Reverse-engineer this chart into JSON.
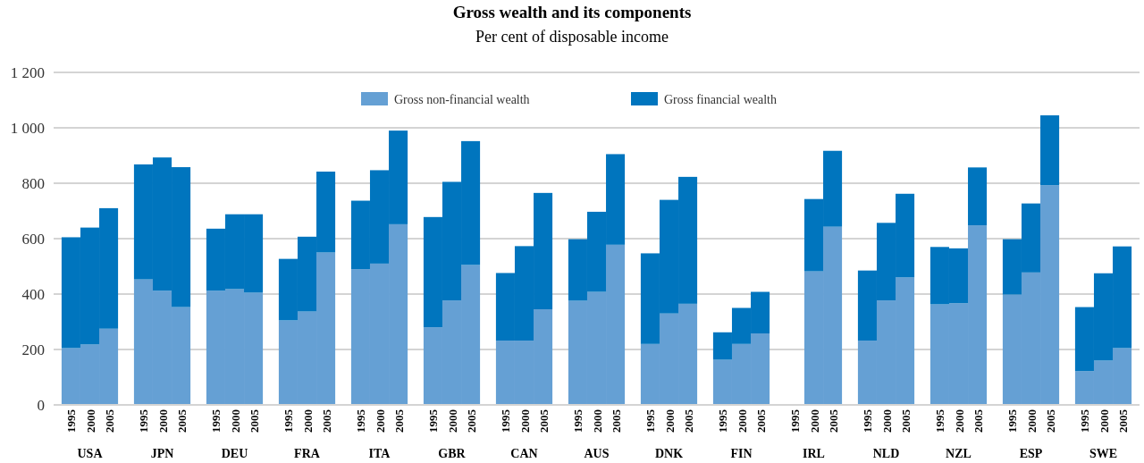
{
  "chart_data": {
    "type": "bar",
    "title": "Gross wealth and its components",
    "subtitle": "Per cent of disposable income",
    "categories": [
      "1995",
      "2000",
      "2005",
      "1995",
      "2000",
      "2005",
      "1995",
      "2000",
      "2005",
      "1995",
      "2000",
      "2005",
      "1995",
      "2000",
      "2005",
      "1995",
      "2000",
      "2005",
      "1995",
      "2000",
      "2005",
      "1995",
      "2000",
      "2005",
      "1995",
      "2000",
      "2005",
      "1995",
      "2000",
      "2005",
      "1995",
      "2000",
      "2005",
      "1995",
      "2000",
      "2005",
      "1995",
      "2000",
      "2005",
      "1995",
      "2000",
      "2005",
      "1995",
      "2000",
      "2005"
    ],
    "annotations": [
      "USA",
      "JPN",
      "DEU",
      "FRA",
      "ITA",
      "GBR",
      "CAN",
      "AUS",
      "DNK",
      "FIN",
      "IRL",
      "NLD",
      "NZL",
      "ESP",
      "SWE"
    ],
    "stacked": true,
    "series": [
      {
        "name": "Gross non-financial wealth",
        "color": "#65a0d4",
        "values": [
          205,
          218,
          275,
          453,
          412,
          353,
          412,
          418,
          405,
          305,
          337,
          550,
          490,
          510,
          652,
          280,
          377,
          505,
          232,
          232,
          345,
          376,
          408,
          578,
          220,
          330,
          365,
          163,
          220,
          258,
          null,
          482,
          643,
          232,
          377,
          460,
          363,
          367,
          648,
          398,
          478,
          793,
          122,
          160,
          205
        ]
      },
      {
        "name": "Gross financial wealth",
        "color": "#0075be",
        "values": [
          400,
          422,
          435,
          415,
          481,
          505,
          224,
          270,
          283,
          222,
          270,
          292,
          247,
          337,
          338,
          398,
          428,
          447,
          244,
          341,
          420,
          222,
          289,
          327,
          327,
          410,
          458,
          99,
          130,
          150,
          null,
          261,
          274,
          253,
          280,
          302,
          207,
          198,
          209,
          200,
          249,
          252,
          231,
          315,
          367
        ]
      }
    ],
    "ylim": [
      0,
      1200
    ],
    "yticks": [
      0,
      200,
      400,
      600,
      800,
      {
        "value": 1000,
        "label": "1 000"
      },
      {
        "value": 1200,
        "label": "1 200"
      }
    ],
    "grid": "y",
    "legend": "top"
  }
}
